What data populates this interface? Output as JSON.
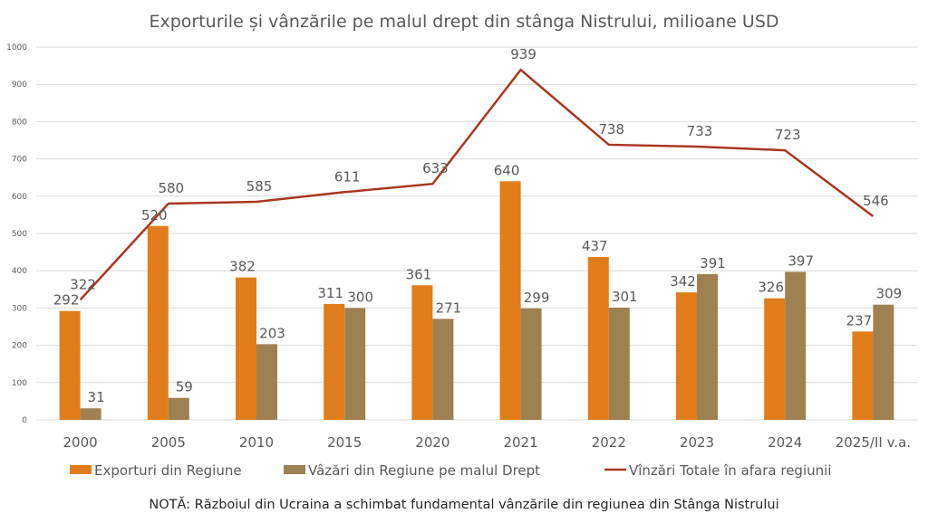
{
  "chart_data": {
    "type": "bar",
    "title": "Exporturile și vânzările pe malul drept din stânga Nistrului, milioane USD",
    "xlabel": "",
    "ylabel": "",
    "ylim": [
      0,
      1000
    ],
    "yticks": [
      0,
      100,
      200,
      300,
      400,
      500,
      600,
      700,
      800,
      900,
      1000
    ],
    "grid": true,
    "legend_position": "bottom",
    "categories": [
      "2000",
      "2005",
      "2010",
      "2015",
      "2020",
      "2021",
      "2022",
      "2023",
      "2024",
      "2025/II v.a."
    ],
    "series": [
      {
        "name": "Exporturi din Regiune",
        "type": "bar",
        "color": "#E07D1A",
        "values": [
          292,
          520,
          382,
          311,
          361,
          640,
          437,
          342,
          326,
          237
        ]
      },
      {
        "name": "Vâzări din Regiune pe malul Drept",
        "type": "bar",
        "color": "#9E8151",
        "values": [
          31,
          59,
          203,
          300,
          271,
          299,
          301,
          391,
          397,
          309
        ]
      },
      {
        "name": "Vînzări Totale în afara regiunii",
        "type": "line",
        "color": "#A8371F",
        "values": [
          322,
          580,
          585,
          611,
          633,
          939,
          738,
          733,
          723,
          546
        ]
      }
    ],
    "note": "NOTĂ: Războiul din Ucraina a schimbat fundamental vânzările din regiunea din Stânga Nistrului"
  }
}
